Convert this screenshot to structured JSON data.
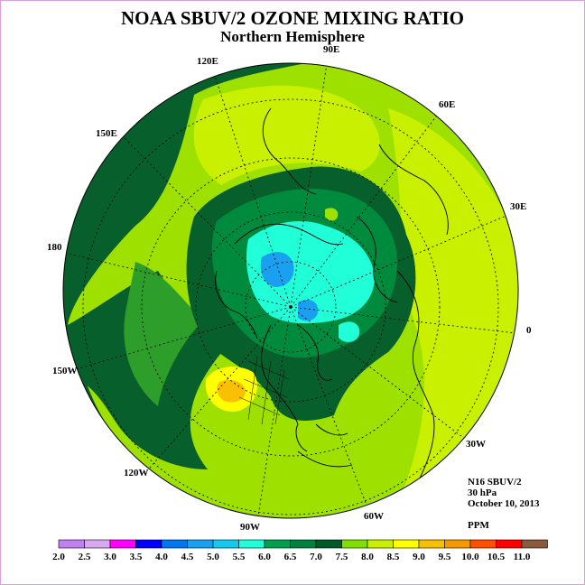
{
  "title": "NOAA SBUV/2 OZONE MIXING RATIO",
  "subtitle": "Northern Hemisphere",
  "longitude_labels": [
    "120E",
    "90E",
    "60E",
    "150E",
    "30E",
    "180",
    "0",
    "150W",
    "30W",
    "120W",
    "60W",
    "90W"
  ],
  "info": {
    "instrument": "N16 SBUV/2",
    "level": "30 hPa",
    "date": "October 10, 2013",
    "units": "PPM"
  },
  "colorbar": {
    "labels": [
      "2.0",
      "2.5",
      "3.0",
      "3.5",
      "4.0",
      "4.5",
      "5.0",
      "5.5",
      "6.0",
      "6.5",
      "7.0",
      "7.5",
      "8.0",
      "8.5",
      "9.0",
      "9.5",
      "10.0",
      "10.5",
      "11.0"
    ],
    "colors": [
      "#c080f0",
      "#d8a8f0",
      "#ff00ff",
      "#0000ff",
      "#0077ee",
      "#1aa0f0",
      "#14c8f0",
      "#20ffd8",
      "#00a050",
      "#008040",
      "#005a28",
      "#80e000",
      "#c8f000",
      "#ffff00",
      "#f8c000",
      "#f89800",
      "#ff5000",
      "#ff0000",
      "#8b5a3c"
    ]
  },
  "map_colors": {
    "dark_green": "#075f2c",
    "mid_green": "#008a3e",
    "green_72": "#2e9e2a",
    "yellow_green": "#9ee000",
    "light_yellow_green": "#c8f000",
    "yellow": "#ffff00",
    "orange": "#f8c000",
    "cyan": "#20ffd8",
    "cyan_light": "#40ffe8",
    "blue": "#1aa0f0"
  }
}
